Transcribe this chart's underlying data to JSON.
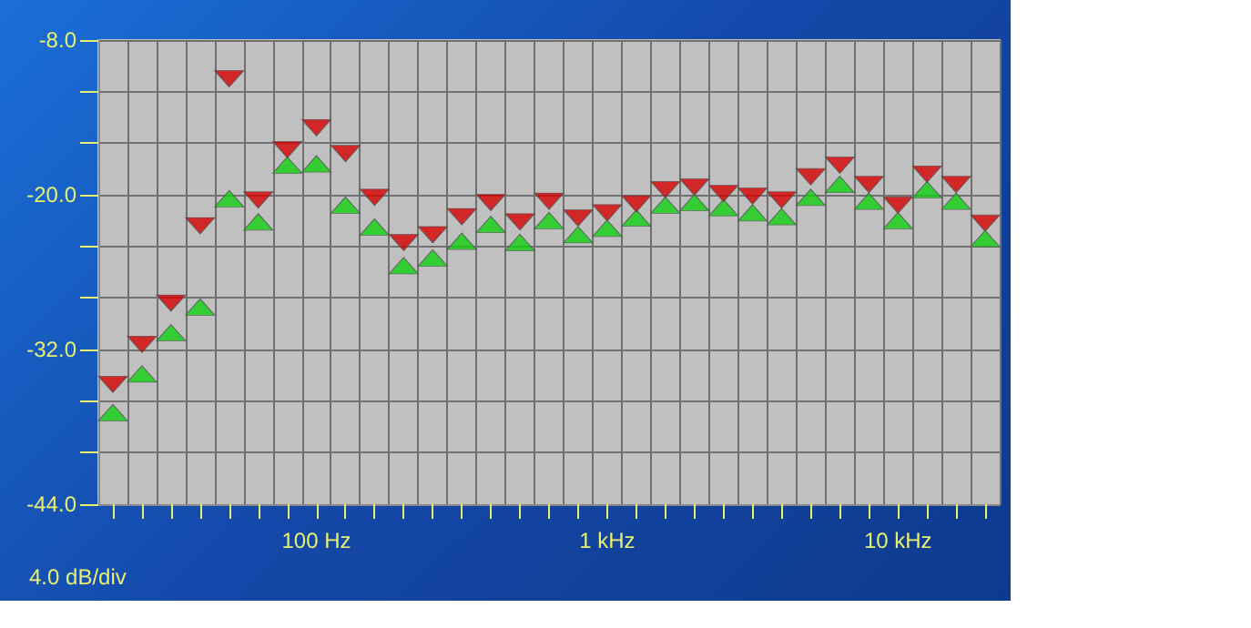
{
  "chart_data": {
    "type": "scatter",
    "grid": true,
    "marker": "triangle",
    "categories": [
      null,
      null,
      null,
      null,
      null,
      null,
      null,
      "100 Hz",
      null,
      null,
      null,
      null,
      null,
      null,
      null,
      null,
      null,
      "1 kHz",
      null,
      null,
      null,
      null,
      null,
      null,
      null,
      null,
      null,
      "10 kHz",
      null,
      null,
      null
    ],
    "series": [
      {
        "color": "#d40000",
        "values": [
          -34.7,
          -31.6,
          -28.4,
          -22.4,
          -11.0,
          -20.4,
          -16.5,
          -14.8,
          -16.8,
          -20.2,
          -23.7,
          -23.1,
          -21.7,
          -20.6,
          -22.1,
          -20.5,
          -21.8,
          -21.4,
          -20.7,
          -19.6,
          -19.4,
          -19.9,
          -20.1,
          -20.4,
          -18.6,
          -17.7,
          -19.2,
          -20.8,
          -18.4,
          -19.2,
          -22.2
        ]
      },
      {
        "color": "#10d010",
        "values": [
          -36.9,
          -33.9,
          -30.7,
          -28.7,
          -20.3,
          -22.1,
          -17.7,
          -17.6,
          -20.8,
          -22.5,
          -25.5,
          -24.9,
          -23.6,
          -22.3,
          -23.7,
          -22.0,
          -23.1,
          -22.6,
          -21.8,
          -20.8,
          -20.6,
          -21.0,
          -21.4,
          -21.7,
          -20.2,
          -19.2,
          -20.5,
          -22.0,
          -19.6,
          -20.5,
          -23.4
        ]
      }
    ],
    "ylim": [
      -44,
      -8
    ],
    "yticks": [
      {
        "value": -44,
        "label": "-44.0"
      },
      {
        "value": -40,
        "label": null
      },
      {
        "value": -36,
        "label": null
      },
      {
        "value": -32,
        "label": "-32.0"
      },
      {
        "value": -28,
        "label": null
      },
      {
        "value": -24,
        "label": null
      },
      {
        "value": -20,
        "label": "-20.0"
      },
      {
        "value": -16,
        "label": null
      },
      {
        "value": -12,
        "label": null
      },
      {
        "value": -8,
        "label": "-8.0"
      }
    ],
    "annotations": [
      "4.0 dB/div"
    ]
  }
}
